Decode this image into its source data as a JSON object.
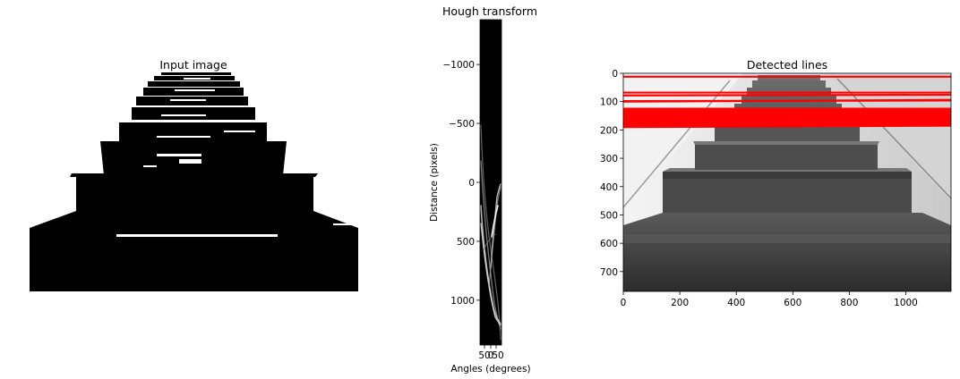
{
  "figure": {
    "panels": [
      "Input image",
      "Hough transform",
      "Detected lines"
    ]
  },
  "chart_data": [
    {
      "type": "image",
      "title": "Input image",
      "content": "binary black-and-white edge image of a staircase",
      "axes_visible": false
    },
    {
      "type": "heatmap",
      "title": "Hough transform",
      "xlabel": "Angles (degrees)",
      "ylabel": "Distance (pixels)",
      "colormap": "gray",
      "xlim": [
        -90,
        90
      ],
      "xticks": [
        "50",
        "0",
        "50"
      ],
      "ylim": [
        1380,
        -1380
      ],
      "yticks": [
        -1000,
        -500,
        0,
        500,
        1000
      ],
      "ytick_labels": [
        "−1000",
        "−500",
        "0",
        "500",
        "1000"
      ]
    },
    {
      "type": "image",
      "title": "Detected lines",
      "content": "grayscale photo of wooden stairs with detected Hough lines overlaid",
      "xlim": [
        0,
        1160
      ],
      "ylim": [
        770,
        0
      ],
      "xticks": [
        0,
        200,
        400,
        600,
        800,
        1000
      ],
      "yticks": [
        0,
        100,
        200,
        300,
        400,
        500,
        600,
        700
      ],
      "line_color": "#ff0000",
      "detected_lines": [
        {
          "y_left": 12,
          "y_right": 12
        },
        {
          "y_left": 68,
          "y_right": 68
        },
        {
          "y_left": 78,
          "y_right": 76
        },
        {
          "y_left": 98,
          "y_right": 96
        },
        {
          "y_left": 100,
          "y_right": 94
        },
        {
          "y_left": 125,
          "y_right": 125
        },
        {
          "y_left": 130,
          "y_right": 150
        },
        {
          "y_left": 145,
          "y_right": 165
        },
        {
          "y_left": 160,
          "y_right": 172
        },
        {
          "y_left": 175,
          "y_right": 180
        },
        {
          "y_left": 190,
          "y_right": 185
        }
      ]
    }
  ]
}
